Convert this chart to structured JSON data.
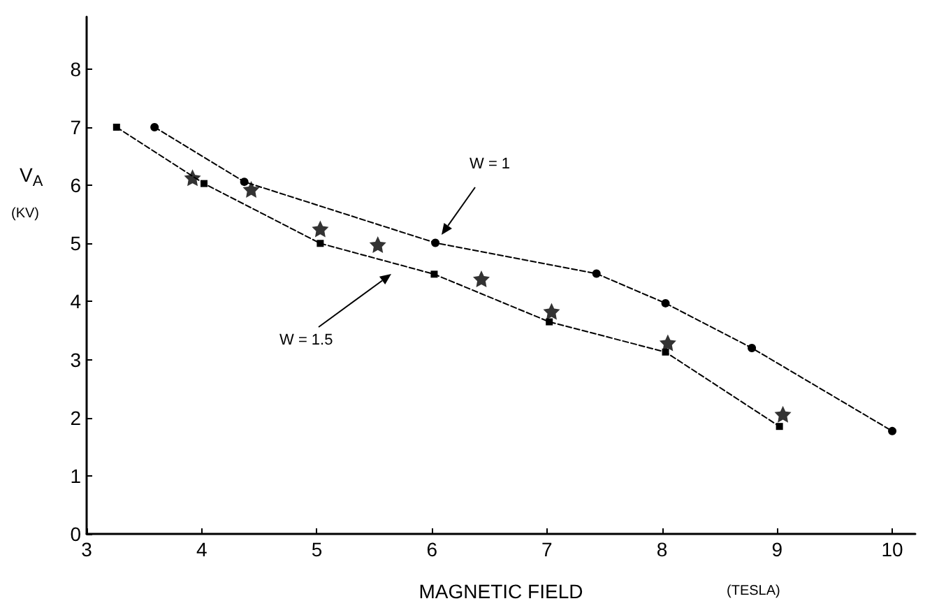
{
  "chart_data": {
    "type": "line",
    "xlabel": "MAGNETIC FIELD",
    "ylabel": "V$_{A}$",
    "xlim": [
      3,
      10.2
    ],
    "xticks": [
      3,
      4,
      5,
      6,
      7,
      8,
      9,
      10
    ],
    "ylim": [
      0,
      8.9
    ],
    "yticks": [
      0,
      1,
      2,
      3,
      4,
      5,
      6,
      7,
      8
    ],
    "grid": false,
    "series": [
      {
        "color": "#000000",
        "marker": "circle",
        "line_style": "dashed",
        "x": [
          3.59,
          4.37,
          6.03,
          7.43,
          8.03,
          8.78,
          10.0
        ],
        "values": [
          7.0,
          6.06,
          5.01,
          4.48,
          3.97,
          3.2,
          1.77
        ]
      },
      {
        "color": "#000000",
        "marker": "square",
        "line_style": "dashed",
        "x": [
          3.26,
          4.02,
          5.03,
          6.02,
          7.02,
          8.03,
          9.02
        ],
        "values": [
          7.0,
          6.03,
          5.0,
          4.47,
          3.65,
          3.13,
          1.85
        ]
      },
      {
        "type": "scatter",
        "color": "#000000",
        "marker": "star",
        "x": [
          3.92,
          4.43,
          5.03,
          5.53,
          6.43,
          7.04,
          8.05,
          9.05
        ],
        "values": [
          6.13,
          5.93,
          5.25,
          4.98,
          4.39,
          3.83,
          3.29,
          2.06
        ]
      }
    ],
    "annotations": [
      "W = 1",
      "W = 1.5",
      "(KV)",
      "(TESLA)"
    ]
  }
}
